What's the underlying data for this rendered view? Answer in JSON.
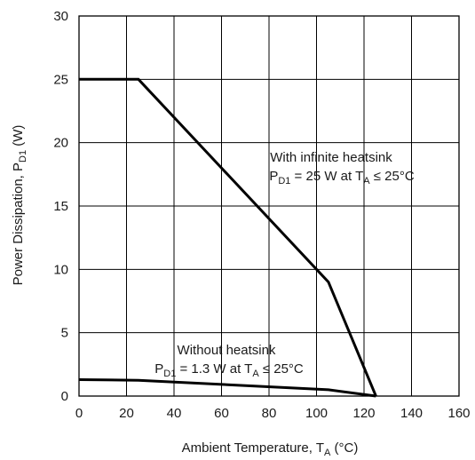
{
  "chart_data": {
    "type": "line",
    "title": "",
    "xlabel": {
      "main": "Ambient Temperature, T",
      "sub": "A",
      "tail": " (°C)"
    },
    "ylabel": {
      "main": "Power Dissipation, P",
      "sub": "D1",
      "tail": " (W)"
    },
    "xlim": [
      0,
      160
    ],
    "ylim": [
      0,
      30
    ],
    "x_ticks": [
      0,
      20,
      40,
      60,
      80,
      100,
      120,
      140,
      160
    ],
    "y_ticks": [
      0,
      5,
      10,
      15,
      20,
      25,
      30
    ],
    "grid": true,
    "series": [
      {
        "name": "",
        "x": [
          0,
          25,
          105,
          125
        ],
        "y": [
          25,
          25,
          9,
          0
        ]
      },
      {
        "name": "",
        "x": [
          0,
          25,
          105,
          125
        ],
        "y": [
          1.3,
          1.25,
          0.5,
          0
        ]
      }
    ],
    "annotations": [
      {
        "line1": "With infinite heatsink",
        "line2": {
          "a": "P",
          "a_sub": "D1",
          "b": " = 25 W at T",
          "b_sub": "A",
          "c": " ≤ 25°C"
        }
      },
      {
        "line1": "Without heatsink",
        "line2": {
          "a": "P",
          "a_sub": "D1",
          "b": " = 1.3 W at T",
          "b_sub": "A",
          "c": " ≤ 25°C"
        }
      }
    ]
  }
}
